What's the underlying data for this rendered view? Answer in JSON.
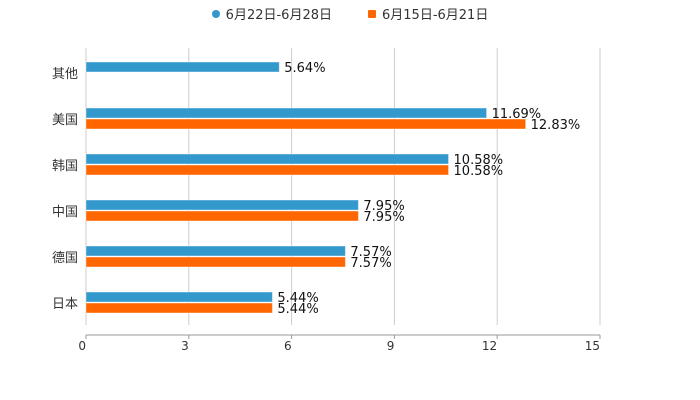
{
  "chart_data": {
    "type": "bar",
    "orientation": "horizontal",
    "categories": [
      "其他",
      "美国",
      "韩国",
      "中国",
      "德国",
      "日本"
    ],
    "series": [
      {
        "name": "6月22日-6月28日",
        "color": "#3399cc",
        "values": [
          5.64,
          11.69,
          10.58,
          7.95,
          7.57,
          5.44
        ],
        "labels": [
          "5.64%",
          "11.69%",
          "10.58%",
          "7.95%",
          "7.57%",
          "5.44%"
        ]
      },
      {
        "name": "6月15日-6月21日",
        "color": "#ff6600",
        "values": [
          null,
          12.83,
          10.58,
          7.95,
          7.57,
          5.44
        ],
        "labels": [
          null,
          "12.83%",
          "10.58%",
          "7.95%",
          "7.57%",
          "5.44%"
        ]
      }
    ],
    "xlim": [
      0,
      15
    ],
    "xticks": [
      "0",
      "3",
      "6",
      "9",
      "12",
      "15"
    ],
    "grid": true,
    "legend_position": "top-center",
    "title": "",
    "xlabel": "",
    "ylabel": ""
  }
}
